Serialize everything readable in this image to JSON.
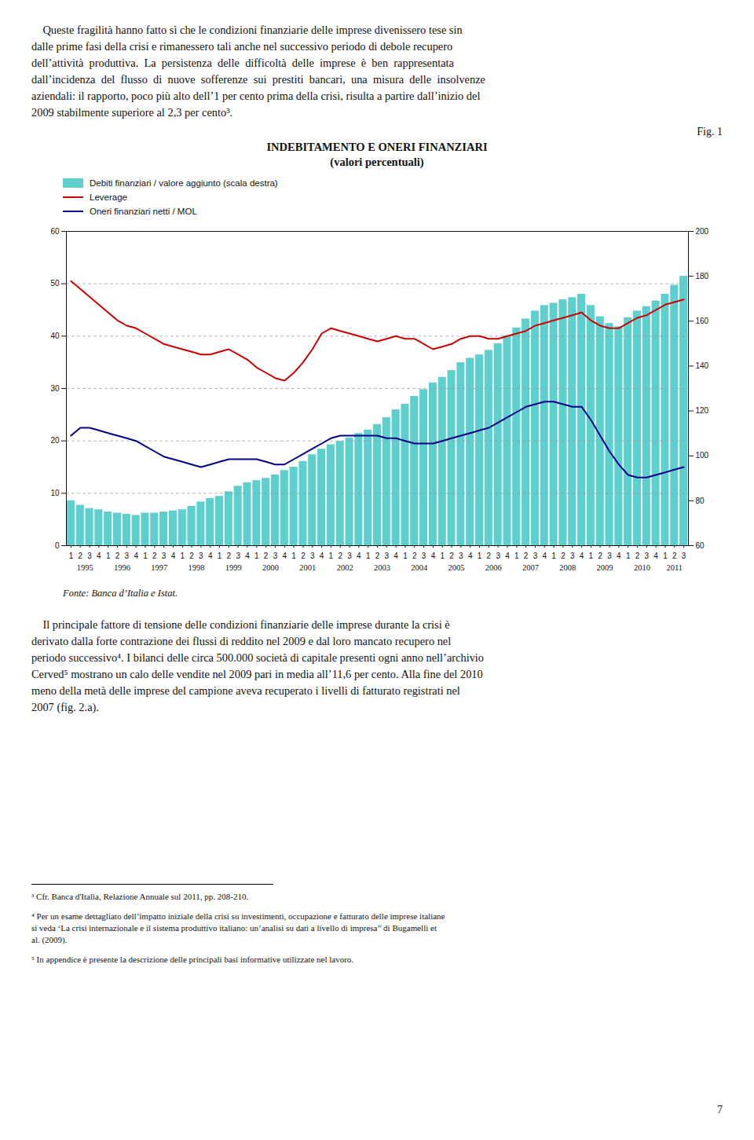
{
  "chart_data": {
    "type": "bar",
    "title": "INDEBITAMENTO E ONERI FINANZIARI",
    "subtitle": "(valori percentuali)",
    "source": "Fonte: Banca d’Italia e Istat.",
    "categories": [
      "1",
      "2",
      "3",
      "4",
      "1",
      "2",
      "3",
      "4",
      "1",
      "2",
      "3",
      "4",
      "1",
      "2",
      "3",
      "4",
      "1",
      "2",
      "3",
      "4",
      "1",
      "2",
      "3",
      "4",
      "1",
      "2",
      "3",
      "4",
      "1",
      "2",
      "3",
      "4",
      "1",
      "2",
      "3",
      "4",
      "1",
      "2",
      "3",
      "4",
      "1",
      "2",
      "3",
      "4",
      "1",
      "2",
      "3",
      "4",
      "1",
      "2",
      "3",
      "4",
      "1",
      "2",
      "3",
      "4",
      "1",
      "2",
      "3",
      "4",
      "1",
      "2",
      "3",
      "4",
      "1",
      "2",
      "3"
    ],
    "category_groups": [
      "1995",
      "1996",
      "1997",
      "1998",
      "1999",
      "2000",
      "2001",
      "2002",
      "2003",
      "2004",
      "2005",
      "2006",
      "2007",
      "2008",
      "2009",
      "2010",
      "2011"
    ],
    "series": [
      {
        "name": "Debiti finanziari / valore aggiunto (scala destra)",
        "type": "bar",
        "axis": "y2",
        "color": "#5ECFCF",
        "values": [
          80.0,
          78.0,
          76.5,
          76.0,
          75.0,
          74.5,
          74.0,
          73.5,
          74.5,
          74.5,
          75.0,
          75.5,
          76.0,
          77.5,
          79.5,
          81.0,
          82.0,
          84.0,
          86.5,
          88.0,
          89.0,
          90.0,
          91.5,
          93.5,
          95.0,
          97.5,
          100.5,
          103.0,
          105.0,
          106.5,
          108.0,
          110.0,
          111.5,
          114.0,
          117.0,
          120.5,
          123.0,
          126.5,
          129.5,
          132.5,
          135.0,
          138.0,
          141.5,
          143.5,
          145.0,
          147.0,
          150.0,
          153.5,
          157.0,
          161.0,
          164.5,
          167.0,
          168.0,
          169.5,
          170.5,
          172.0,
          167.0,
          162.0,
          159.0,
          157.5,
          161.5,
          164.5,
          166.5,
          169.0,
          172.0,
          176.0,
          180.0
        ]
      },
      {
        "name": "Leverage",
        "type": "line",
        "color": "#CC0000",
        "values": [
          50.5,
          49.0,
          47.5,
          46.0,
          44.5,
          43.0,
          42.0,
          41.5,
          40.5,
          39.5,
          38.5,
          38.0,
          37.5,
          37.0,
          36.5,
          36.5,
          37.0,
          37.5,
          36.5,
          35.5,
          34.0,
          33.0,
          32.0,
          31.5,
          33.0,
          35.0,
          37.5,
          40.5,
          41.5,
          41.0,
          40.5,
          40.0,
          39.5,
          39.0,
          39.5,
          40.0,
          39.5,
          39.5,
          38.5,
          37.5,
          38.0,
          38.5,
          39.5,
          40.0,
          40.0,
          39.5,
          39.5,
          40.0,
          40.5,
          41.0,
          42.0,
          42.5,
          43.0,
          43.5,
          44.0,
          44.5,
          43.0,
          42.0,
          41.5,
          41.5,
          42.5,
          43.5,
          44.0,
          45.0,
          46.0,
          46.5,
          47.0
        ]
      },
      {
        "name": "Oneri finanziari netti / MOL",
        "type": "line",
        "color": "#00008B",
        "values": [
          21.0,
          22.5,
          22.5,
          22.0,
          21.5,
          21.0,
          20.5,
          20.0,
          19.0,
          18.0,
          17.0,
          16.5,
          16.0,
          15.5,
          15.0,
          15.5,
          16.0,
          16.5,
          16.5,
          16.5,
          16.5,
          16.0,
          15.5,
          15.5,
          16.5,
          17.5,
          18.5,
          19.5,
          20.5,
          21.0,
          21.0,
          21.0,
          21.0,
          21.0,
          20.5,
          20.5,
          20.0,
          19.5,
          19.5,
          19.5,
          20.0,
          20.5,
          21.0,
          21.5,
          22.0,
          22.5,
          23.5,
          24.5,
          25.5,
          26.5,
          27.0,
          27.5,
          27.5,
          27.0,
          26.5,
          26.5,
          24.0,
          21.0,
          18.0,
          15.5,
          13.5,
          13.0,
          13.0,
          13.5,
          14.0,
          14.5,
          15.0
        ]
      }
    ],
    "ylim": [
      0,
      60
    ],
    "yticks": [
      0,
      10,
      20,
      30,
      40,
      50,
      60
    ],
    "y2lim": [
      60,
      200
    ],
    "y2ticks": [
      60,
      80,
      100,
      120,
      140,
      160,
      180,
      200
    ],
    "grid": true
  },
  "fig_label": "Fig. 1",
  "paragraphs": [
    [
      "    Queste fragilità hanno fatto sì che le condizioni finanziarie delle imprese divenissero tese sin",
      "dalle prime fasi della crisi e rimanessero tali anche nel successivo periodo di debole recupero",
      "dell’attività  produttiva.  La  persistenza  delle  difficoltà  delle  imprese  è  ben  rappresentata",
      "dall’incidenza  del  flusso  di  nuove  sofferenze  sui  prestiti  bancari,  una  misura  delle  insolvenze",
      "aziendali: il rapporto, poco più alto dell’1 per cento prima della crisi, risulta a partire dall’inizio del",
      "2009 stabilmente superiore al 2,3 per cento³."
    ],
    [
      "    Il principale fattore di tensione delle condizioni finanziarie delle imprese durante la crisi è",
      "derivato dalla forte contrazione dei flussi di reddito nel 2009 e dal loro mancato recupero nel",
      "periodo successivo⁴. I bilanci delle circa 500.000 società di capitale presenti ogni anno nell’archivio",
      "Cerved⁵ mostrano un calo delle vendite nel 2009 pari in media all’11,6 per cento. Alla fine del 2010",
      "meno della metà delle imprese del campione aveva recuperato i livelli di fatturato registrati nel",
      "2007 (fig. 2.a)."
    ]
  ],
  "footnotes": [
    [
      "³ Cfr. Banca d'Italia, Relazione Annuale sul 2011, pp. 208-210."
    ],
    [
      "⁴ Per un esame dettagliato dell’impatto iniziale della crisi su investimenti, occupazione e fatturato delle imprese italiane",
      "si veda ‘La crisi internazionale e il sistema produttivo italiano: un’analisi su dati a livello di impresa” di Bugamelli et",
      "al. (2009)."
    ],
    [
      "⁵ In appendice è presente la descrizione delle principali basi informative utilizzate nel lavoro."
    ]
  ],
  "page_number": "7"
}
